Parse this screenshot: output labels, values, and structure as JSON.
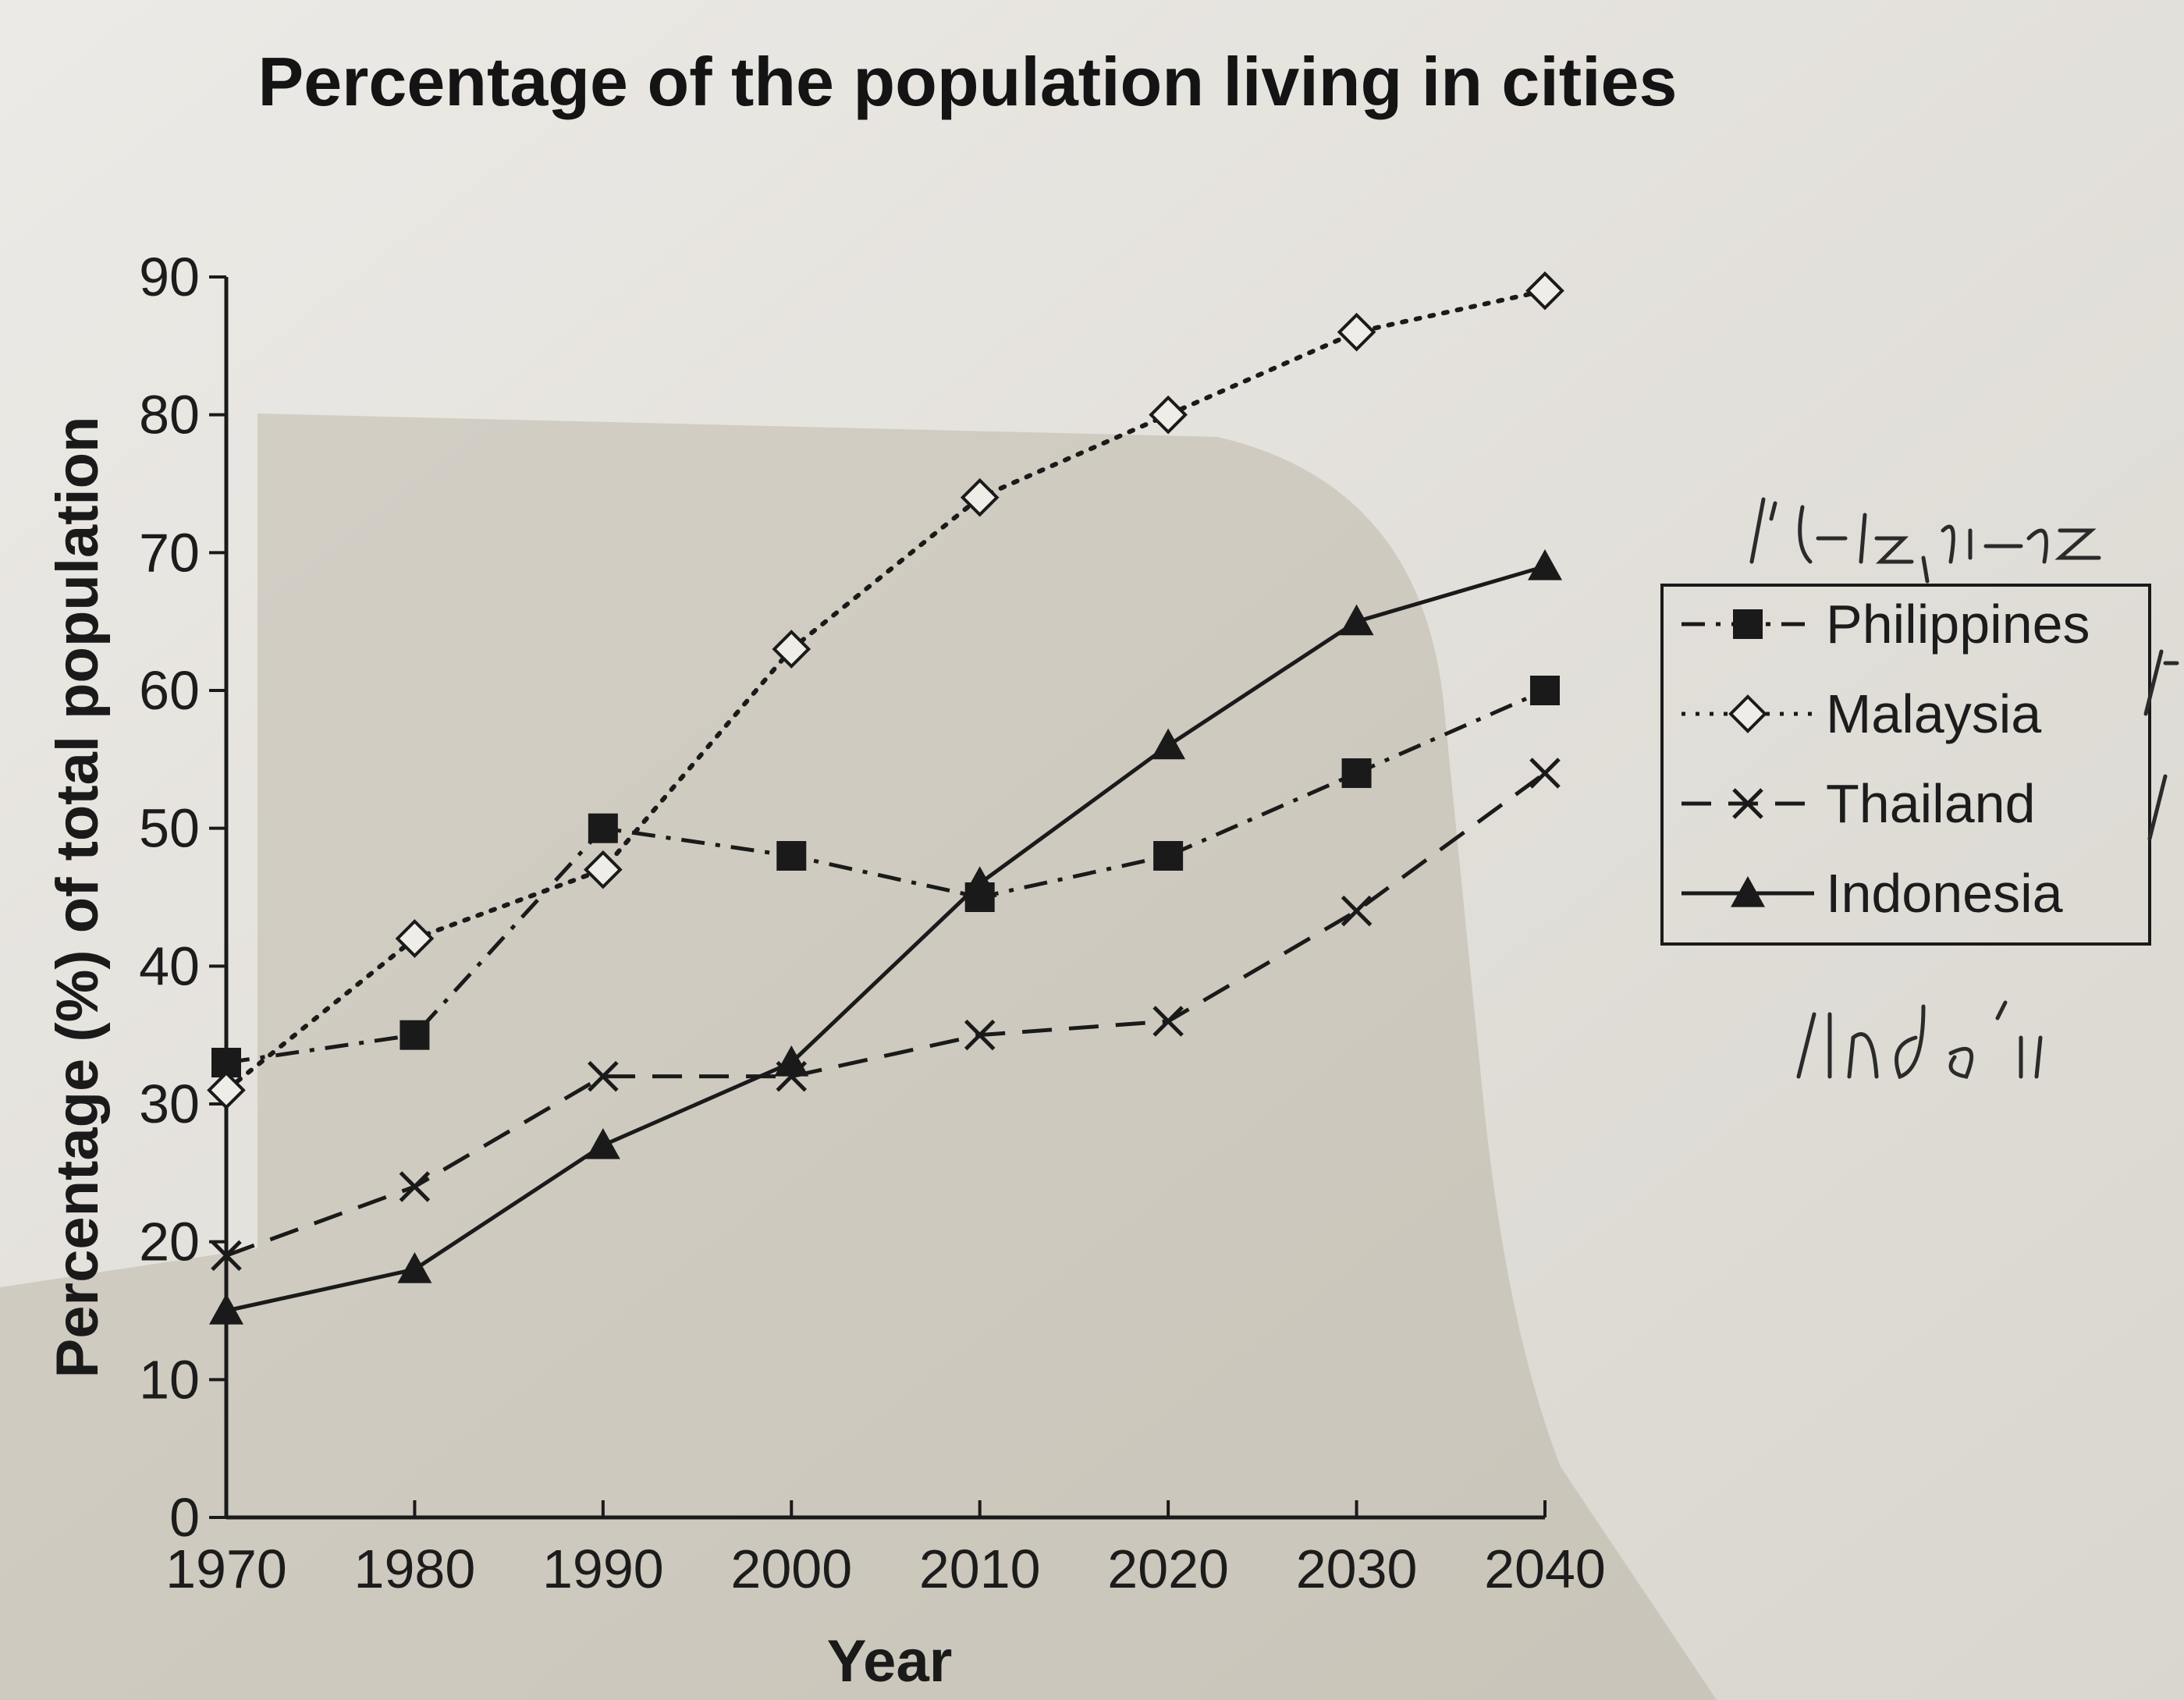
{
  "chart_data": {
    "type": "line",
    "title": "Percentage of the population living in cities",
    "xlabel": "Year",
    "ylabel": "Percentage (%) of total population",
    "x": [
      1970,
      1980,
      1990,
      2000,
      2010,
      2020,
      2030,
      2040
    ],
    "xlim": [
      1970,
      2040
    ],
    "ylim": [
      0,
      90
    ],
    "xticks": [
      "1970",
      "1980",
      "1990",
      "2000",
      "2010",
      "2020",
      "2030",
      "2040"
    ],
    "yticks": [
      "0",
      "10",
      "20",
      "30",
      "40",
      "50",
      "60",
      "70",
      "80",
      "90"
    ],
    "grid": false,
    "legend_position": "right",
    "series": [
      {
        "name": "Philippines",
        "values": [
          33,
          35,
          50,
          48,
          45,
          48,
          54,
          60
        ],
        "marker": "filled-square",
        "dash": "dash-dot",
        "color": "#1a1a1a"
      },
      {
        "name": "Malaysia",
        "values": [
          31,
          42,
          47,
          63,
          74,
          80,
          86,
          89
        ],
        "marker": "open-diamond",
        "dash": "dotted",
        "color": "#1a1a1a"
      },
      {
        "name": "Thailand",
        "values": [
          19,
          24,
          32,
          32,
          35,
          36,
          44,
          54
        ],
        "marker": "cross",
        "dash": "dashed",
        "color": "#1a1a1a"
      },
      {
        "name": "Indonesia",
        "values": [
          15,
          18,
          27,
          33,
          46,
          56,
          65,
          69
        ],
        "marker": "filled-triangle",
        "dash": "solid",
        "color": "#1a1a1a"
      }
    ]
  }
}
